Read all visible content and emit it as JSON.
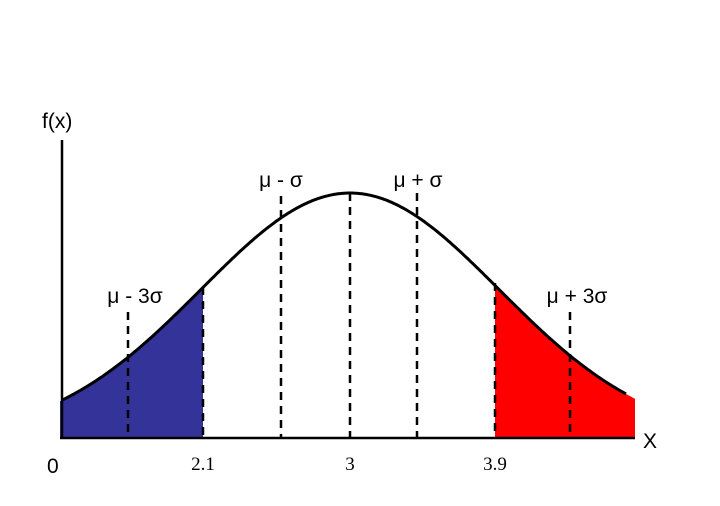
{
  "axes": {
    "y_label": "f(x)",
    "x_label": "X",
    "origin": "0"
  },
  "ticks": [
    "2.1",
    "3",
    "3.9"
  ],
  "markers": [
    "μ - 3σ",
    "μ - σ",
    "μ + σ",
    "μ + 3σ"
  ]
}
